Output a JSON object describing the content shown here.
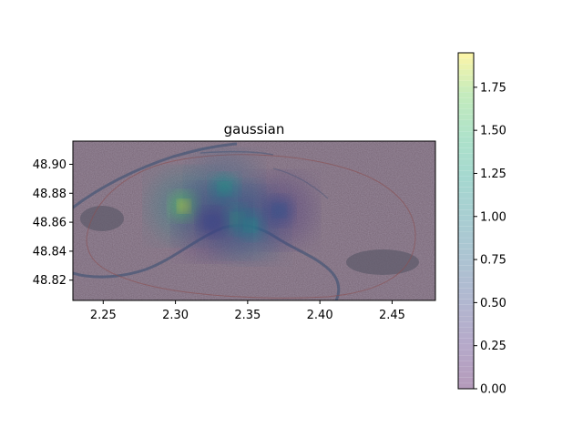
{
  "chart_data": {
    "type": "heatmap",
    "title": "gaussian",
    "xlabel": "",
    "ylabel": "",
    "xlim": [
      2.229,
      2.48
    ],
    "ylim": [
      48.806,
      48.916
    ],
    "x_ticks": [
      2.25,
      2.3,
      2.35,
      2.4,
      2.45
    ],
    "x_tick_labels": [
      "2.25",
      "2.30",
      "2.35",
      "2.40",
      "2.45"
    ],
    "y_ticks": [
      48.82,
      48.84,
      48.86,
      48.88,
      48.9
    ],
    "y_tick_labels": [
      "48.82",
      "48.84",
      "48.86",
      "48.88",
      "48.90"
    ],
    "grid": false,
    "background": "semi-transparent map tiles of Paris with Seine river",
    "colormap": "viridis",
    "colormap_alpha": 0.35,
    "hotspots": [
      {
        "lon": 2.306,
        "lat": 48.871,
        "value": 1.9
      },
      {
        "lon": 2.334,
        "lat": 48.883,
        "value": 1.3
      },
      {
        "lon": 2.343,
        "lat": 48.862,
        "value": 1.5
      },
      {
        "lon": 2.352,
        "lat": 48.858,
        "value": 1.2
      },
      {
        "lon": 2.372,
        "lat": 48.868,
        "value": 0.6
      },
      {
        "lon": 2.325,
        "lat": 48.86,
        "value": 0.5
      }
    ],
    "colorbar": {
      "min": 0.0,
      "max": 1.95,
      "ticks": [
        0.0,
        0.25,
        0.5,
        0.75,
        1.0,
        1.25,
        1.5,
        1.75
      ],
      "tick_labels": [
        "0.00",
        "0.25",
        "0.50",
        "0.75",
        "1.00",
        "1.25",
        "1.50",
        "1.75"
      ],
      "levels": 60
    }
  }
}
